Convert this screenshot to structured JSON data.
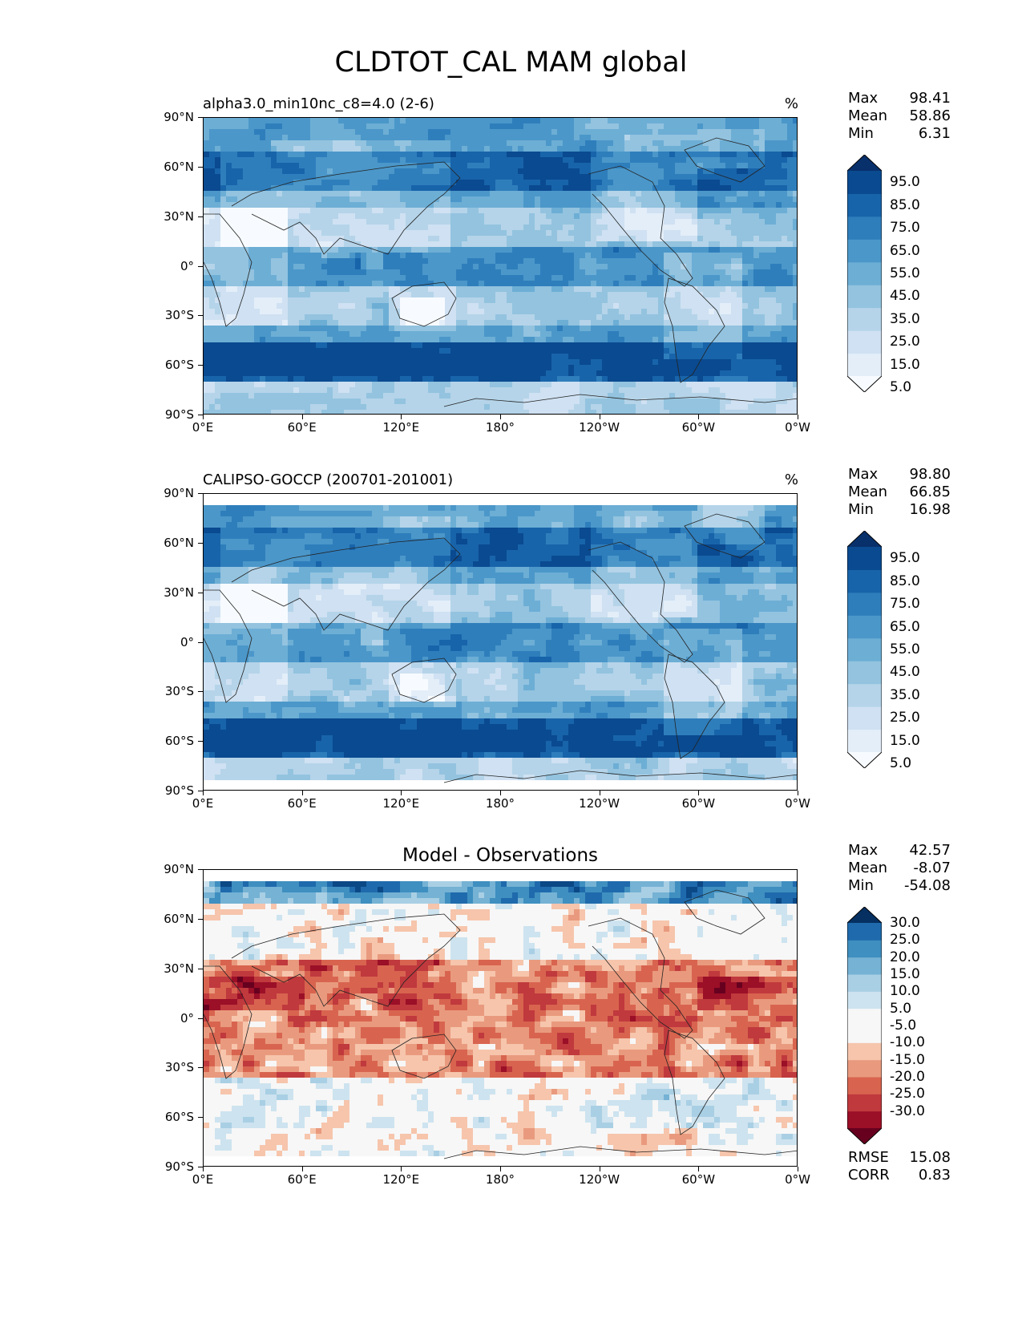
{
  "figure_title": "CLDTOT_CAL MAM global",
  "xticks": [
    "0°E",
    "60°E",
    "120°E",
    "180°",
    "120°W",
    "60°W",
    "0°W"
  ],
  "yticks": [
    "90°N",
    "60°N",
    "30°N",
    "0°",
    "30°S",
    "60°S",
    "90°S"
  ],
  "panels": [
    {
      "title": "alpha3.0_min10nc_c8=4.0 (2-6)",
      "units": "%",
      "stats": {
        "Max": "98.41",
        "Mean": "58.86",
        "Min": "6.31"
      },
      "colorbar_labels": [
        "95.0",
        "85.0",
        "75.0",
        "65.0",
        "55.0",
        "45.0",
        "35.0",
        "25.0",
        "15.0",
        "5.0"
      ],
      "colormap": "Blues"
    },
    {
      "title": "CALIPSO-GOCCP (200701-201001)",
      "units": "%",
      "stats": {
        "Max": "98.80",
        "Mean": "66.85",
        "Min": "16.98"
      },
      "colorbar_labels": [
        "95.0",
        "85.0",
        "75.0",
        "65.0",
        "55.0",
        "45.0",
        "35.0",
        "25.0",
        "15.0",
        "5.0"
      ],
      "colormap": "Blues"
    },
    {
      "title": "Model - Observations",
      "units": "",
      "stats": {
        "Max": "42.57",
        "Mean": "-8.07",
        "Min": "-54.08"
      },
      "colorbar_labels": [
        "30.0",
        "25.0",
        "20.0",
        "15.0",
        "10.0",
        "5.0",
        "-5.0",
        "-10.0",
        "-15.0",
        "-20.0",
        "-25.0",
        "-30.0"
      ],
      "colormap": "RdBu",
      "metrics": {
        "RMSE": "15.08",
        "CORR": "0.83"
      }
    }
  ],
  "colors": {
    "blues": [
      "#f7fbff",
      "#e3eef9",
      "#cfe1f2",
      "#b5d4e9",
      "#93c3df",
      "#6daed5",
      "#4b97c9",
      "#2f7ebc",
      "#1864aa",
      "#0a4a90",
      "#08306b"
    ],
    "rdbu": [
      "#67001f",
      "#9b0f27",
      "#c0393d",
      "#d8644f",
      "#e99a7e",
      "#f6c5ac",
      "#f7f7f7",
      "#f7f7f7",
      "#cde3ef",
      "#a9cfe4",
      "#75b2d4",
      "#3f8fc0",
      "#1f6aac",
      "#0b4886",
      "#053061"
    ]
  }
}
